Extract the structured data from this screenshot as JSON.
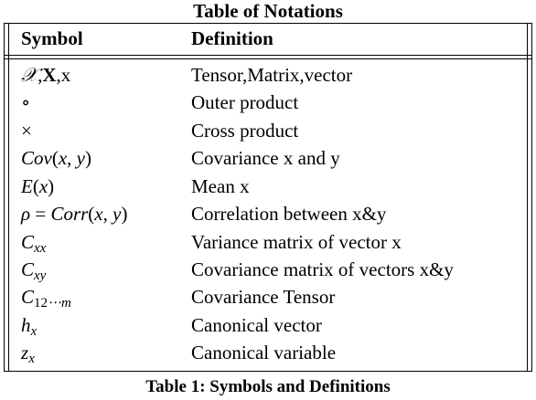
{
  "table_title": "Table of Notations",
  "headers": {
    "symbol": "Symbol",
    "definition": "Definition"
  },
  "rows": [
    {
      "symbol": "𝒳,X,x",
      "definition": "Tensor,Matrix,vector"
    },
    {
      "symbol": "∘",
      "definition": "Outer product"
    },
    {
      "symbol": "×",
      "definition": "Cross product"
    },
    {
      "symbol": "Cov(x, y)",
      "definition": "Covariance x and y"
    },
    {
      "symbol": "E(x)",
      "definition": "Mean x"
    },
    {
      "symbol": "ρ = Corr(x, y)",
      "definition": "Correlation between x&y"
    },
    {
      "symbol": "Cxx",
      "definition": "Variance matrix of vector x"
    },
    {
      "symbol": "Cxy",
      "definition": "Covariance matrix of vectors x&y"
    },
    {
      "symbol": "C12⋯m",
      "definition": "Covariance Tensor"
    },
    {
      "symbol": "hx",
      "definition": "Canonical vector"
    },
    {
      "symbol": "zx",
      "definition": "Canonical variable"
    }
  ],
  "caption": "Table 1: Symbols and Definitions"
}
